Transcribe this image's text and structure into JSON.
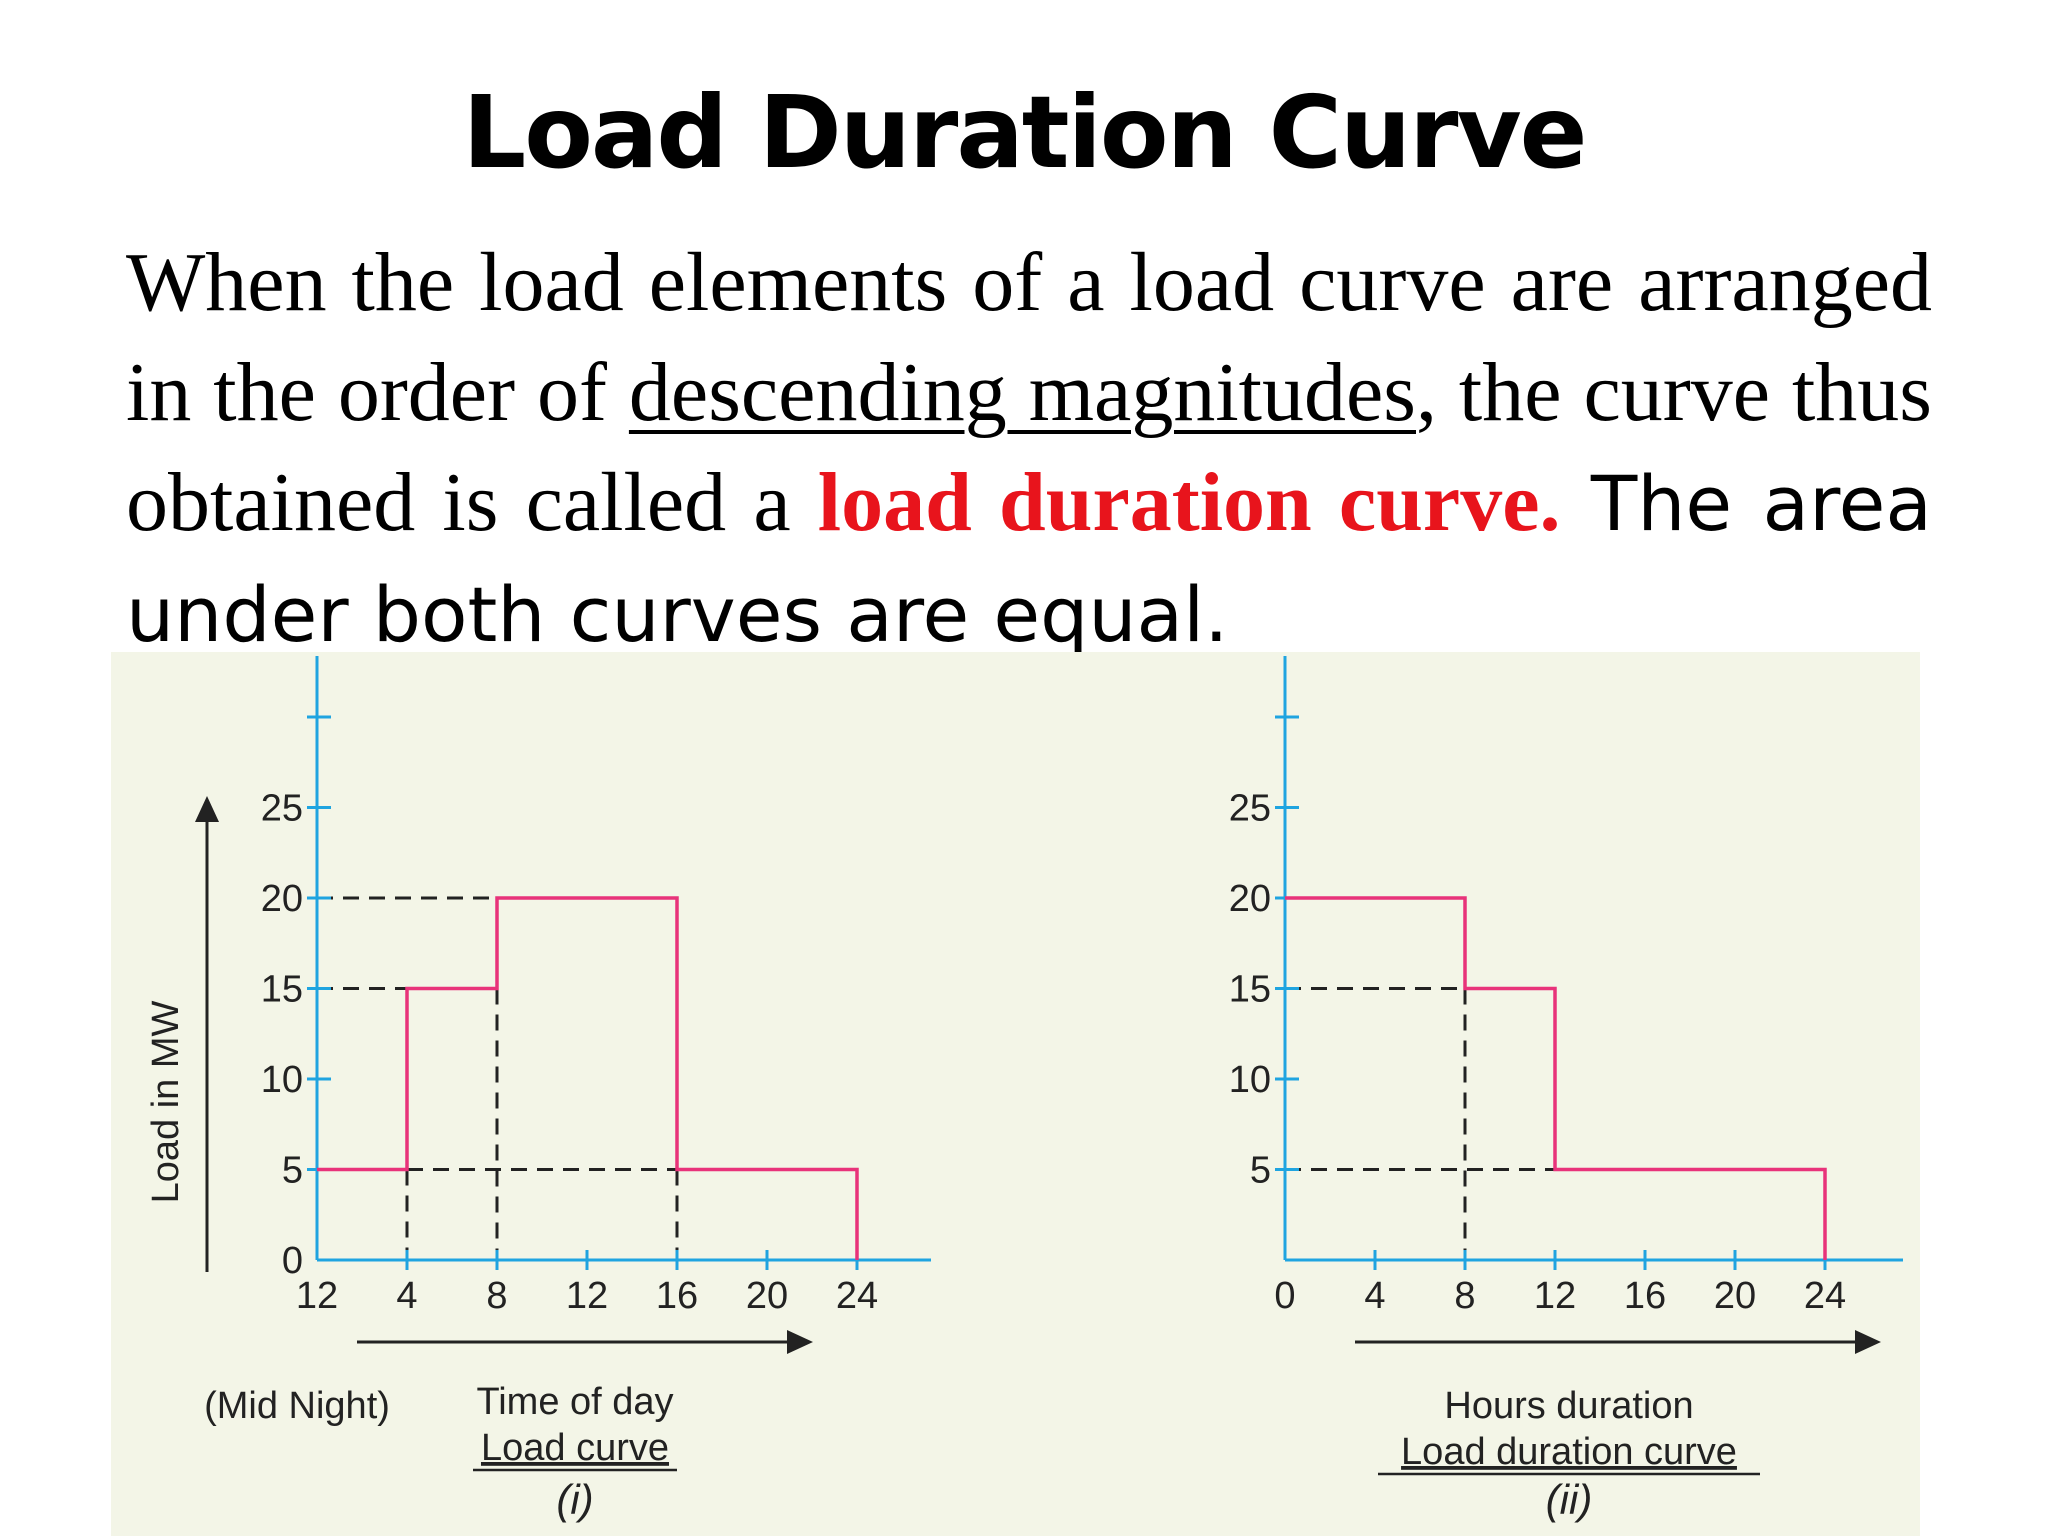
{
  "slide": {
    "title": "Load Duration Curve",
    "para_part1": "When the load elements of a load curve are arranged in the order of ",
    "para_underlined": "descending magnitudes",
    "para_part2": ", the curve thus obtained is called a ",
    "para_red": "load duration curve.",
    "para_part3": " The area under both curves are equal."
  },
  "colors": {
    "axis": "#1fa4e0",
    "curve": "#e8337a",
    "dash": "#222222",
    "red_text": "#e8141c",
    "figure_bg": "#f3f5e7"
  },
  "chart_data": [
    {
      "type": "line",
      "title": "Load curve",
      "xlabel": "Time of day",
      "ylabel": "Load in MW",
      "caption": "(i)",
      "x_note": "(Mid Night)",
      "x_ticks": [
        0,
        4,
        8,
        12,
        16,
        20,
        24
      ],
      "x_tick_labels": [
        "12",
        "4",
        "8",
        "12",
        "16",
        "20",
        "24"
      ],
      "y_ticks": [
        0,
        5,
        10,
        15,
        20,
        25
      ],
      "y_tick_labels": [
        "0",
        "5",
        "10",
        "15",
        "20",
        "25"
      ],
      "xlim": [
        0,
        24
      ],
      "ylim": [
        0,
        25
      ],
      "series": [
        {
          "x": [
            0,
            4,
            4,
            8,
            8,
            16,
            16,
            24,
            24
          ],
          "y": [
            5,
            5,
            15,
            15,
            20,
            20,
            5,
            5,
            0
          ]
        }
      ],
      "dashed_guides": [
        {
          "from": [
            0,
            20
          ],
          "to": [
            8,
            20
          ]
        },
        {
          "from": [
            0,
            15
          ],
          "to": [
            4,
            15
          ]
        },
        {
          "from": [
            4,
            5
          ],
          "to": [
            16,
            5
          ]
        },
        {
          "from": [
            4,
            5
          ],
          "to": [
            4,
            0
          ]
        },
        {
          "from": [
            8,
            15
          ],
          "to": [
            8,
            0
          ]
        },
        {
          "from": [
            16,
            5
          ],
          "to": [
            16,
            0
          ]
        }
      ]
    },
    {
      "type": "line",
      "title": "Load duration curve",
      "xlabel": "Hours duration",
      "ylabel": "",
      "caption": "(ii)",
      "x_ticks": [
        0,
        4,
        8,
        12,
        16,
        20,
        24
      ],
      "x_tick_labels": [
        "0",
        "4",
        "8",
        "12",
        "16",
        "20",
        "24"
      ],
      "y_ticks": [
        5,
        10,
        15,
        20,
        25
      ],
      "y_tick_labels": [
        "5",
        "10",
        "15",
        "20",
        "25"
      ],
      "xlim": [
        0,
        24
      ],
      "ylim": [
        0,
        25
      ],
      "series": [
        {
          "x": [
            0,
            8,
            8,
            12,
            12,
            24,
            24
          ],
          "y": [
            20,
            20,
            15,
            15,
            5,
            5,
            0
          ]
        }
      ],
      "dashed_guides": [
        {
          "from": [
            0,
            15
          ],
          "to": [
            8,
            15
          ]
        },
        {
          "from": [
            0,
            5
          ],
          "to": [
            12,
            5
          ]
        },
        {
          "from": [
            8,
            15
          ],
          "to": [
            8,
            0
          ]
        }
      ]
    }
  ]
}
